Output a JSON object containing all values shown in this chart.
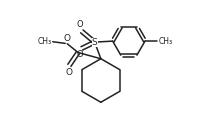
{
  "bg_color": "#ffffff",
  "line_color": "#222222",
  "line_width": 1.1,
  "fig_width": 2.1,
  "fig_height": 1.33,
  "dpi": 100,
  "xlim": [
    0,
    10
  ],
  "ylim": [
    0,
    6.35
  ]
}
